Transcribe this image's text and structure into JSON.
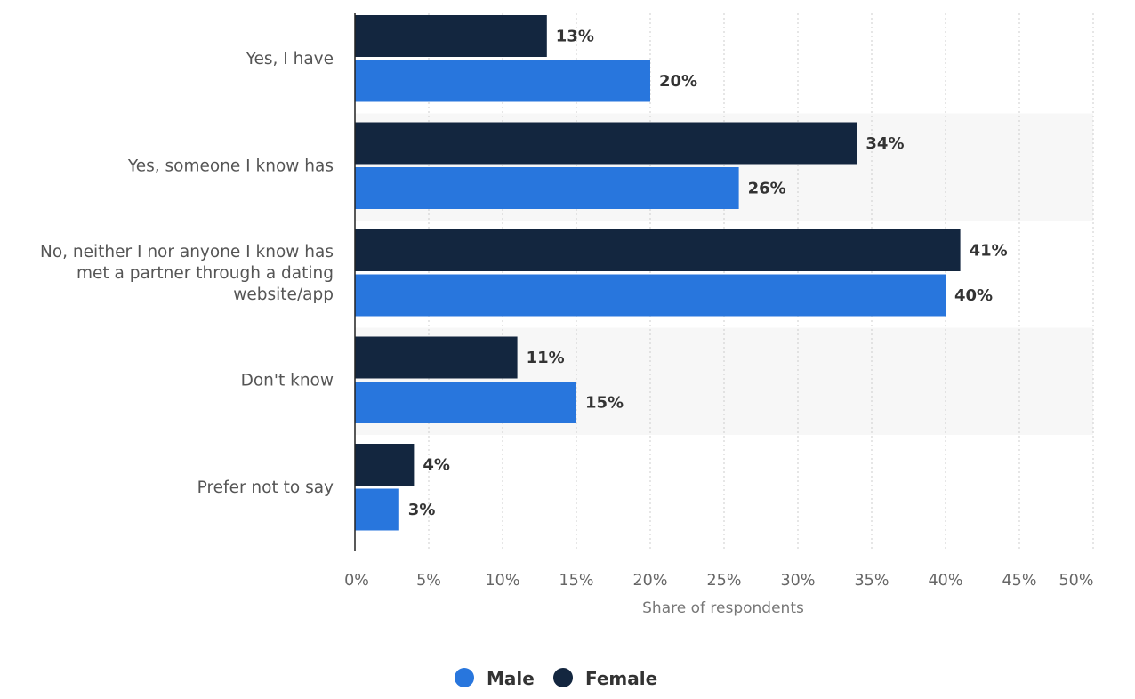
{
  "chart_data": {
    "type": "bar",
    "orientation": "horizontal",
    "categories": [
      [
        "Yes, I have"
      ],
      [
        "Yes, someone I know has"
      ],
      [
        "No, neither I nor anyone I know has",
        "met a partner through a dating",
        "website/app"
      ],
      [
        "Don't know"
      ],
      [
        "Prefer not to say"
      ]
    ],
    "series": [
      {
        "name": "Female",
        "color": "#13263f",
        "values": [
          13,
          34,
          41,
          11,
          4
        ],
        "labels": [
          "13%",
          "34%",
          "41%",
          "11%",
          "4%"
        ]
      },
      {
        "name": "Male",
        "color": "#2876dd",
        "values": [
          20,
          26,
          40,
          15,
          3
        ],
        "labels": [
          "20%",
          "26%",
          "40%",
          "15%",
          "3%"
        ]
      }
    ],
    "xlim": [
      0,
      50
    ],
    "ticks": [
      0,
      5,
      10,
      15,
      20,
      25,
      30,
      35,
      40,
      45,
      50
    ],
    "tick_labels": [
      "0%",
      "5%",
      "10%",
      "15%",
      "20%",
      "25%",
      "30%",
      "35%",
      "40%",
      "45%",
      "50%"
    ],
    "xlabel": "Share of respondents",
    "grid": true,
    "legend": {
      "position": "bottom-center",
      "items": [
        {
          "name": "Male",
          "color": "#2876dd"
        },
        {
          "name": "Female",
          "color": "#13263f"
        }
      ]
    }
  }
}
